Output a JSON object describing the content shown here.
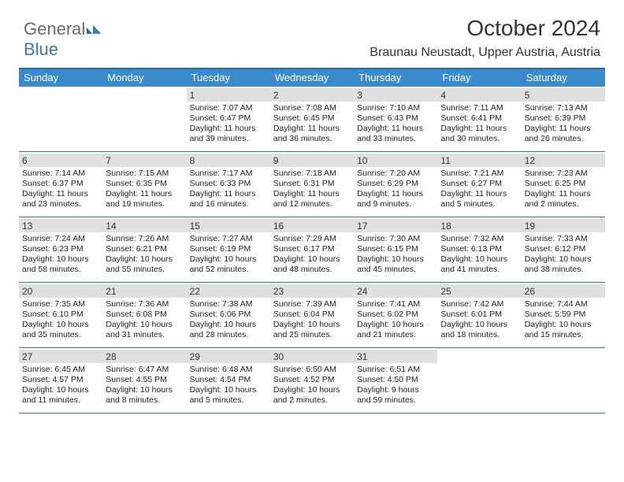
{
  "logo": {
    "part1": "General",
    "part2": "Blue"
  },
  "title": "October 2024",
  "location": "Braunau Neustadt, Upper Austria, Austria",
  "day_headers": [
    "Sunday",
    "Monday",
    "Tuesday",
    "Wednesday",
    "Thursday",
    "Friday",
    "Saturday"
  ],
  "colors": {
    "header_bg": "#3b8acb",
    "header_border": "#2b6aa0",
    "row_border": "#3b6f9c",
    "daynum_bg": "#e0e0e0",
    "logo_gray": "#6a6a6a",
    "logo_blue": "#3a7ab8"
  },
  "weeks": [
    [
      null,
      null,
      {
        "n": "1",
        "sunrise": "Sunrise: 7:07 AM",
        "sunset": "Sunset: 6:47 PM",
        "daylight": "Daylight: 11 hours and 39 minutes."
      },
      {
        "n": "2",
        "sunrise": "Sunrise: 7:08 AM",
        "sunset": "Sunset: 6:45 PM",
        "daylight": "Daylight: 11 hours and 36 minutes."
      },
      {
        "n": "3",
        "sunrise": "Sunrise: 7:10 AM",
        "sunset": "Sunset: 6:43 PM",
        "daylight": "Daylight: 11 hours and 33 minutes."
      },
      {
        "n": "4",
        "sunrise": "Sunrise: 7:11 AM",
        "sunset": "Sunset: 6:41 PM",
        "daylight": "Daylight: 11 hours and 30 minutes."
      },
      {
        "n": "5",
        "sunrise": "Sunrise: 7:13 AM",
        "sunset": "Sunset: 6:39 PM",
        "daylight": "Daylight: 11 hours and 26 minutes."
      }
    ],
    [
      {
        "n": "6",
        "sunrise": "Sunrise: 7:14 AM",
        "sunset": "Sunset: 6:37 PM",
        "daylight": "Daylight: 11 hours and 23 minutes."
      },
      {
        "n": "7",
        "sunrise": "Sunrise: 7:15 AM",
        "sunset": "Sunset: 6:35 PM",
        "daylight": "Daylight: 11 hours and 19 minutes."
      },
      {
        "n": "8",
        "sunrise": "Sunrise: 7:17 AM",
        "sunset": "Sunset: 6:33 PM",
        "daylight": "Daylight: 11 hours and 16 minutes."
      },
      {
        "n": "9",
        "sunrise": "Sunrise: 7:18 AM",
        "sunset": "Sunset: 6:31 PM",
        "daylight": "Daylight: 11 hours and 12 minutes."
      },
      {
        "n": "10",
        "sunrise": "Sunrise: 7:20 AM",
        "sunset": "Sunset: 6:29 PM",
        "daylight": "Daylight: 11 hours and 9 minutes."
      },
      {
        "n": "11",
        "sunrise": "Sunrise: 7:21 AM",
        "sunset": "Sunset: 6:27 PM",
        "daylight": "Daylight: 11 hours and 5 minutes."
      },
      {
        "n": "12",
        "sunrise": "Sunrise: 7:23 AM",
        "sunset": "Sunset: 6:25 PM",
        "daylight": "Daylight: 11 hours and 2 minutes."
      }
    ],
    [
      {
        "n": "13",
        "sunrise": "Sunrise: 7:24 AM",
        "sunset": "Sunset: 6:23 PM",
        "daylight": "Daylight: 10 hours and 58 minutes."
      },
      {
        "n": "14",
        "sunrise": "Sunrise: 7:26 AM",
        "sunset": "Sunset: 6:21 PM",
        "daylight": "Daylight: 10 hours and 55 minutes."
      },
      {
        "n": "15",
        "sunrise": "Sunrise: 7:27 AM",
        "sunset": "Sunset: 6:19 PM",
        "daylight": "Daylight: 10 hours and 52 minutes."
      },
      {
        "n": "16",
        "sunrise": "Sunrise: 7:29 AM",
        "sunset": "Sunset: 6:17 PM",
        "daylight": "Daylight: 10 hours and 48 minutes."
      },
      {
        "n": "17",
        "sunrise": "Sunrise: 7:30 AM",
        "sunset": "Sunset: 6:15 PM",
        "daylight": "Daylight: 10 hours and 45 minutes."
      },
      {
        "n": "18",
        "sunrise": "Sunrise: 7:32 AM",
        "sunset": "Sunset: 6:13 PM",
        "daylight": "Daylight: 10 hours and 41 minutes."
      },
      {
        "n": "19",
        "sunrise": "Sunrise: 7:33 AM",
        "sunset": "Sunset: 6:12 PM",
        "daylight": "Daylight: 10 hours and 38 minutes."
      }
    ],
    [
      {
        "n": "20",
        "sunrise": "Sunrise: 7:35 AM",
        "sunset": "Sunset: 6:10 PM",
        "daylight": "Daylight: 10 hours and 35 minutes."
      },
      {
        "n": "21",
        "sunrise": "Sunrise: 7:36 AM",
        "sunset": "Sunset: 6:08 PM",
        "daylight": "Daylight: 10 hours and 31 minutes."
      },
      {
        "n": "22",
        "sunrise": "Sunrise: 7:38 AM",
        "sunset": "Sunset: 6:06 PM",
        "daylight": "Daylight: 10 hours and 28 minutes."
      },
      {
        "n": "23",
        "sunrise": "Sunrise: 7:39 AM",
        "sunset": "Sunset: 6:04 PM",
        "daylight": "Daylight: 10 hours and 25 minutes."
      },
      {
        "n": "24",
        "sunrise": "Sunrise: 7:41 AM",
        "sunset": "Sunset: 6:02 PM",
        "daylight": "Daylight: 10 hours and 21 minutes."
      },
      {
        "n": "25",
        "sunrise": "Sunrise: 7:42 AM",
        "sunset": "Sunset: 6:01 PM",
        "daylight": "Daylight: 10 hours and 18 minutes."
      },
      {
        "n": "26",
        "sunrise": "Sunrise: 7:44 AM",
        "sunset": "Sunset: 5:59 PM",
        "daylight": "Daylight: 10 hours and 15 minutes."
      }
    ],
    [
      {
        "n": "27",
        "sunrise": "Sunrise: 6:45 AM",
        "sunset": "Sunset: 4:57 PM",
        "daylight": "Daylight: 10 hours and 11 minutes."
      },
      {
        "n": "28",
        "sunrise": "Sunrise: 6:47 AM",
        "sunset": "Sunset: 4:55 PM",
        "daylight": "Daylight: 10 hours and 8 minutes."
      },
      {
        "n": "29",
        "sunrise": "Sunrise: 6:48 AM",
        "sunset": "Sunset: 4:54 PM",
        "daylight": "Daylight: 10 hours and 5 minutes."
      },
      {
        "n": "30",
        "sunrise": "Sunrise: 6:50 AM",
        "sunset": "Sunset: 4:52 PM",
        "daylight": "Daylight: 10 hours and 2 minutes."
      },
      {
        "n": "31",
        "sunrise": "Sunrise: 6:51 AM",
        "sunset": "Sunset: 4:50 PM",
        "daylight": "Daylight: 9 hours and 59 minutes."
      },
      null,
      null
    ]
  ]
}
